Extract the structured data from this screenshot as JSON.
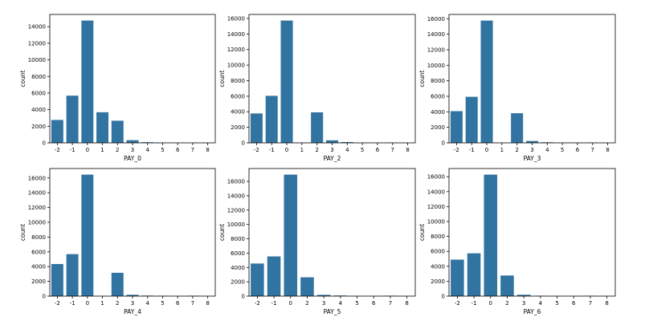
{
  "chart_data": [
    {
      "type": "bar",
      "xlabel": "PAY_0",
      "ylabel": "count",
      "categories": [
        "-2",
        "-1",
        "0",
        "1",
        "2",
        "3",
        "4",
        "5",
        "6",
        "7",
        "8"
      ],
      "values": [
        2759,
        5686,
        14737,
        3688,
        2667,
        322,
        76,
        26,
        11,
        9,
        19
      ],
      "ylim": [
        0,
        15473
      ],
      "yticks": [
        0,
        2000,
        4000,
        6000,
        8000,
        10000,
        12000,
        14000
      ],
      "color": "#3274a1"
    },
    {
      "type": "bar",
      "xlabel": "PAY_2",
      "ylabel": "count",
      "categories": [
        "-2",
        "-1",
        "0",
        "1",
        "2",
        "3",
        "4",
        "5",
        "6",
        "7",
        "8"
      ],
      "values": [
        3782,
        6050,
        15730,
        28,
        3927,
        326,
        99,
        25,
        12,
        20,
        1
      ],
      "ylim": [
        0,
        16516
      ],
      "yticks": [
        0,
        2000,
        4000,
        6000,
        8000,
        10000,
        12000,
        14000,
        16000
      ],
      "color": "#3274a1"
    },
    {
      "type": "bar",
      "xlabel": "PAY_3",
      "ylabel": "count",
      "categories": [
        "-2",
        "-1",
        "0",
        "1",
        "2",
        "3",
        "4",
        "5",
        "6",
        "7",
        "8"
      ],
      "values": [
        4085,
        5938,
        15764,
        4,
        3819,
        240,
        76,
        21,
        23,
        27,
        3
      ],
      "ylim": [
        0,
        16552
      ],
      "yticks": [
        0,
        2000,
        4000,
        6000,
        8000,
        10000,
        12000,
        14000,
        16000
      ],
      "color": "#3274a1"
    },
    {
      "type": "bar",
      "xlabel": "PAY_4",
      "ylabel": "count",
      "categories": [
        "-2",
        "-1",
        "0",
        "1",
        "2",
        "3",
        "4",
        "5",
        "6",
        "7",
        "8"
      ],
      "values": [
        4348,
        5687,
        16455,
        2,
        3159,
        180,
        69,
        35,
        5,
        58,
        2
      ],
      "ylim": [
        0,
        17278
      ],
      "yticks": [
        0,
        2000,
        4000,
        6000,
        8000,
        10000,
        12000,
        14000,
        16000
      ],
      "color": "#3274a1"
    },
    {
      "type": "bar",
      "xlabel": "PAY_5",
      "ylabel": "count",
      "categories": [
        "-2",
        "-1",
        "0",
        "2",
        "3",
        "4",
        "5",
        "6",
        "7",
        "8"
      ],
      "values": [
        4546,
        5539,
        16947,
        2626,
        178,
        84,
        17,
        4,
        58,
        1
      ],
      "ylim": [
        0,
        17794
      ],
      "yticks": [
        0,
        2000,
        4000,
        6000,
        8000,
        10000,
        12000,
        14000,
        16000
      ],
      "color": "#3274a1"
    },
    {
      "type": "bar",
      "xlabel": "PAY_6",
      "ylabel": "count",
      "categories": [
        "-2",
        "-1",
        "0",
        "2",
        "3",
        "4",
        "5",
        "6",
        "7",
        "8"
      ],
      "values": [
        4895,
        5740,
        16286,
        2766,
        184,
        49,
        13,
        19,
        46,
        2
      ],
      "ylim": [
        0,
        17100
      ],
      "yticks": [
        0,
        2000,
        4000,
        6000,
        8000,
        10000,
        12000,
        14000,
        16000
      ],
      "color": "#3274a1"
    }
  ]
}
